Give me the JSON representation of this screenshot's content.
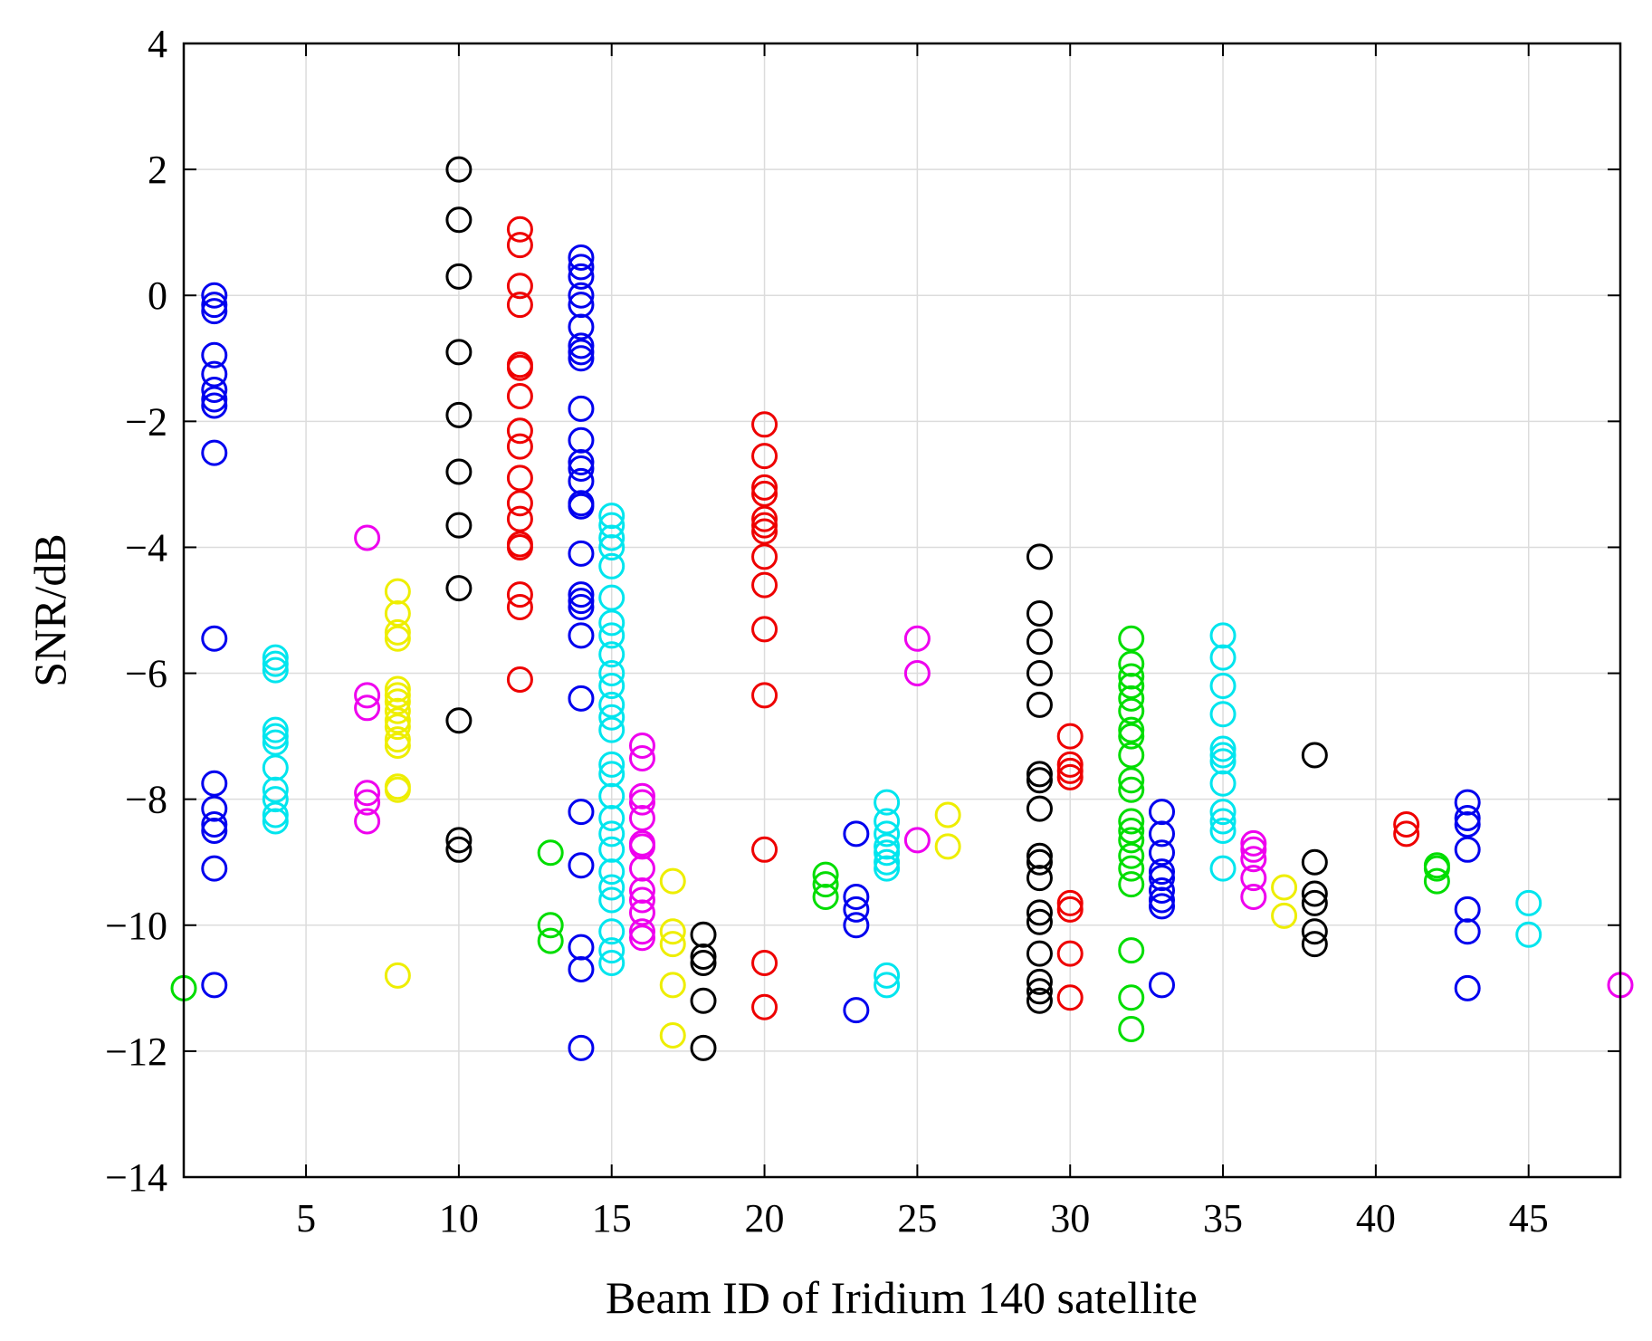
{
  "chart_data": {
    "type": "scatter",
    "title": "",
    "xlabel": "Beam ID of Iridium 140 satellite",
    "ylabel": "SNR/dB",
    "xlim": [
      1,
      48
    ],
    "ylim": [
      -14,
      4
    ],
    "xticks": [
      5,
      10,
      15,
      20,
      25,
      30,
      35,
      40,
      45
    ],
    "yticks": [
      -14,
      -12,
      -10,
      -8,
      -6,
      -4,
      -2,
      0,
      2,
      4
    ],
    "xtick_labels": [
      "5",
      "10",
      "15",
      "20",
      "25",
      "30",
      "35",
      "40",
      "45"
    ],
    "ytick_labels": [
      "−14",
      "−12",
      "−10",
      "−8",
      "−6",
      "−4",
      "−2",
      "0",
      "2",
      "4"
    ],
    "grid": true,
    "marker": "o",
    "series": [
      {
        "name": "beam-1",
        "x": 1,
        "color": "#00dd00",
        "values": [
          -11.0
        ]
      },
      {
        "name": "beam-2",
        "x": 2,
        "color": "#0000ee",
        "values": [
          0.0,
          -0.15,
          -0.25,
          -0.95,
          -1.25,
          -1.5,
          -1.65,
          -1.75,
          -2.5,
          -5.45,
          -7.75,
          -8.15,
          -8.4,
          -8.5,
          -9.1,
          -10.95
        ]
      },
      {
        "name": "beam-4",
        "x": 4,
        "color": "#00e5ee",
        "values": [
          -5.75,
          -5.85,
          -5.95,
          -6.9,
          -7.0,
          -7.1,
          -7.5,
          -7.85,
          -8.0,
          -8.25,
          -8.35
        ]
      },
      {
        "name": "beam-7",
        "x": 7,
        "color": "#ee00ee",
        "values": [
          -3.85,
          -6.35,
          -6.55,
          -7.9,
          -8.05,
          -8.35
        ]
      },
      {
        "name": "beam-8",
        "x": 8,
        "color": "#eeee00",
        "values": [
          -4.7,
          -5.05,
          -5.35,
          -5.45,
          -6.25,
          -6.35,
          -6.45,
          -6.6,
          -6.75,
          -6.85,
          -7.05,
          -7.15,
          -7.8,
          -7.85,
          -10.8
        ]
      },
      {
        "name": "beam-10",
        "x": 10,
        "color": "#000000",
        "values": [
          2.0,
          1.2,
          0.3,
          -0.9,
          -1.9,
          -2.8,
          -3.65,
          -4.65,
          -6.75,
          -8.65,
          -8.8
        ]
      },
      {
        "name": "beam-12",
        "x": 12,
        "color": "#ee0000",
        "values": [
          1.05,
          0.8,
          0.15,
          -0.15,
          -1.1,
          -1.15,
          -1.6,
          -2.15,
          -2.4,
          -2.9,
          -3.3,
          -3.55,
          -3.95,
          -4.0,
          -4.75,
          -4.95,
          -6.1
        ]
      },
      {
        "name": "beam-13",
        "x": 13,
        "color": "#00dd00",
        "values": [
          -8.85,
          -10.0,
          -10.25
        ]
      },
      {
        "name": "beam-14",
        "x": 14,
        "color": "#0000ee",
        "values": [
          0.6,
          0.45,
          0.3,
          0.0,
          -0.15,
          -0.5,
          -0.8,
          -0.9,
          -1.0,
          -1.8,
          -2.3,
          -2.65,
          -2.75,
          -2.95,
          -3.3,
          -3.35,
          -4.1,
          -4.75,
          -4.85,
          -4.95,
          -5.4,
          -6.4,
          -8.2,
          -9.05,
          -10.35,
          -10.7,
          -11.95
        ]
      },
      {
        "name": "beam-15",
        "x": 15,
        "color": "#00e5ee",
        "values": [
          -3.5,
          -3.65,
          -3.85,
          -4.0,
          -4.3,
          -4.8,
          -5.2,
          -5.4,
          -5.7,
          -6.0,
          -6.2,
          -6.5,
          -6.7,
          -6.9,
          -7.45,
          -7.6,
          -7.95,
          -8.3,
          -8.55,
          -8.8,
          -9.15,
          -9.4,
          -9.6,
          -10.1,
          -10.4,
          -10.6
        ]
      },
      {
        "name": "beam-16",
        "x": 16,
        "color": "#ee00ee",
        "values": [
          -7.15,
          -7.35,
          -7.95,
          -8.05,
          -8.3,
          -8.7,
          -8.75,
          -9.1,
          -9.45,
          -9.6,
          -9.8,
          -10.1,
          -10.2
        ]
      },
      {
        "name": "beam-17",
        "x": 17,
        "color": "#eeee00",
        "values": [
          -9.3,
          -10.1,
          -10.3,
          -10.95,
          -11.75
        ]
      },
      {
        "name": "beam-18",
        "x": 18,
        "color": "#000000",
        "values": [
          -10.15,
          -10.5,
          -10.6,
          -11.2,
          -11.95
        ]
      },
      {
        "name": "beam-20",
        "x": 20,
        "color": "#ee0000",
        "values": [
          -2.05,
          -2.55,
          -3.05,
          -3.15,
          -3.55,
          -3.65,
          -3.75,
          -4.15,
          -4.6,
          -5.3,
          -6.35,
          -8.8,
          -10.6,
          -11.3
        ]
      },
      {
        "name": "beam-22",
        "x": 22,
        "color": "#00dd00",
        "values": [
          -9.2,
          -9.35,
          -9.55
        ]
      },
      {
        "name": "beam-23",
        "x": 23,
        "color": "#0000ee",
        "values": [
          -8.55,
          -9.55,
          -9.75,
          -10.0,
          -11.35
        ]
      },
      {
        "name": "beam-24",
        "x": 24,
        "color": "#00e5ee",
        "values": [
          -8.05,
          -8.35,
          -8.55,
          -8.75,
          -8.85,
          -9.0,
          -9.1,
          -10.8,
          -10.95
        ]
      },
      {
        "name": "beam-25",
        "x": 25,
        "color": "#ee00ee",
        "values": [
          -5.45,
          -6.0,
          -8.65
        ]
      },
      {
        "name": "beam-26",
        "x": 26,
        "color": "#eeee00",
        "values": [
          -8.25,
          -8.75
        ]
      },
      {
        "name": "beam-29",
        "x": 29,
        "color": "#000000",
        "values": [
          -4.15,
          -5.05,
          -5.5,
          -6.0,
          -6.5,
          -7.6,
          -7.7,
          -8.15,
          -8.9,
          -9.0,
          -9.25,
          -9.8,
          -9.95,
          -10.45,
          -10.9,
          -11.05,
          -11.2
        ]
      },
      {
        "name": "beam-30",
        "x": 30,
        "color": "#ee0000",
        "values": [
          -7.0,
          -7.45,
          -7.55,
          -7.65,
          -9.65,
          -9.75,
          -10.45,
          -11.15
        ]
      },
      {
        "name": "beam-32",
        "x": 32,
        "color": "#00dd00",
        "values": [
          -5.45,
          -5.85,
          -6.05,
          -6.2,
          -6.4,
          -6.6,
          -6.9,
          -7.0,
          -7.3,
          -7.7,
          -7.85,
          -8.35,
          -8.5,
          -8.65,
          -8.9,
          -9.1,
          -9.35,
          -10.4,
          -11.15,
          -11.65
        ]
      },
      {
        "name": "beam-33",
        "x": 33,
        "color": "#0000ee",
        "values": [
          -8.2,
          -8.55,
          -8.85,
          -9.15,
          -9.25,
          -9.45,
          -9.6,
          -9.7,
          -10.95
        ]
      },
      {
        "name": "beam-35",
        "x": 35,
        "color": "#00e5ee",
        "values": [
          -5.4,
          -5.75,
          -6.2,
          -6.65,
          -7.2,
          -7.3,
          -7.4,
          -7.75,
          -8.2,
          -8.35,
          -8.5,
          -9.1
        ]
      },
      {
        "name": "beam-36",
        "x": 36,
        "color": "#ee00ee",
        "values": [
          -8.7,
          -8.8,
          -8.95,
          -9.25,
          -9.55
        ]
      },
      {
        "name": "beam-37",
        "x": 37,
        "color": "#eeee00",
        "values": [
          -9.4,
          -9.85
        ]
      },
      {
        "name": "beam-38",
        "x": 38,
        "color": "#000000",
        "values": [
          -7.3,
          -9.0,
          -9.5,
          -9.65,
          -10.1,
          -10.3
        ]
      },
      {
        "name": "beam-41",
        "x": 41,
        "color": "#ee0000",
        "values": [
          -8.4,
          -8.55
        ]
      },
      {
        "name": "beam-42",
        "x": 42,
        "color": "#00dd00",
        "values": [
          -9.05,
          -9.1,
          -9.3
        ]
      },
      {
        "name": "beam-43",
        "x": 43,
        "color": "#0000ee",
        "values": [
          -8.05,
          -8.3,
          -8.4,
          -8.8,
          -9.75,
          -10.1,
          -11.0
        ]
      },
      {
        "name": "beam-45",
        "x": 45,
        "color": "#00e5ee",
        "values": [
          -9.65,
          -10.15
        ]
      },
      {
        "name": "beam-48",
        "x": 48,
        "color": "#ee00ee",
        "values": [
          -10.95
        ]
      }
    ]
  }
}
